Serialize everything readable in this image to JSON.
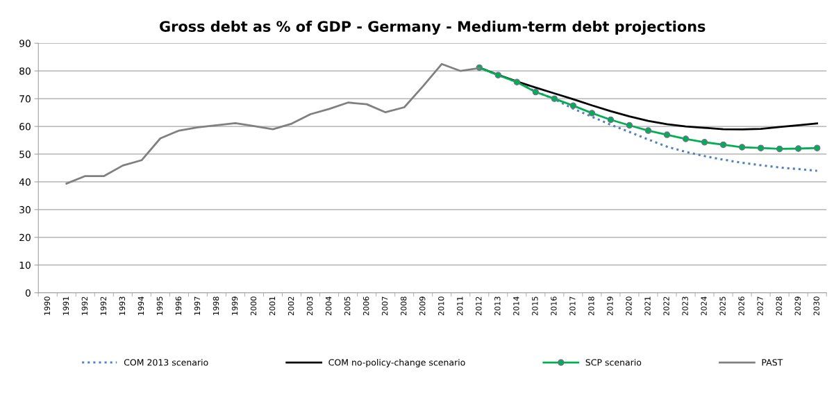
{
  "chart_data": {
    "type": "line",
    "title": "Gross debt as % of GDP - Germany - Medium-term debt projections",
    "categories": [
      "1990",
      "1991",
      "1992",
      "1992",
      "1993",
      "1994",
      "1995",
      "1996",
      "1997",
      "1998",
      "1999",
      "2000",
      "2001",
      "2002",
      "2003",
      "2004",
      "2005",
      "2006",
      "2007",
      "2008",
      "2009",
      "2010",
      "2011",
      "2012",
      "2013",
      "2014",
      "2015",
      "2016",
      "2017",
      "2018",
      "2019",
      "2020",
      "2021",
      "2022",
      "2023",
      "2024",
      "2025",
      "2026",
      "2027",
      "2028",
      "2029",
      "2030"
    ],
    "ylim": [
      0,
      90
    ],
    "yticks": [
      0,
      10,
      20,
      30,
      40,
      50,
      60,
      70,
      80,
      90
    ],
    "grid": "y",
    "legend": "bottom",
    "series": [
      {
        "name": "COM 2013 scenario",
        "color": "#4f81bd",
        "line_style": "dotted",
        "marker": "none",
        "values": [
          null,
          null,
          null,
          null,
          null,
          null,
          null,
          null,
          null,
          null,
          null,
          null,
          null,
          null,
          null,
          null,
          null,
          null,
          null,
          null,
          null,
          null,
          null,
          81.2,
          78.5,
          76.0,
          72.6,
          69.8,
          66.4,
          63.5,
          60.6,
          58.0,
          55.3,
          52.7,
          50.8,
          49.3,
          48.0,
          46.9,
          46.0,
          45.2,
          44.6,
          44.0
        ]
      },
      {
        "name": "COM no-policy-change scenario",
        "color": "#000000",
        "line_style": "solid",
        "marker": "none",
        "values": [
          null,
          null,
          null,
          null,
          null,
          null,
          null,
          null,
          null,
          null,
          null,
          null,
          null,
          null,
          null,
          null,
          null,
          null,
          null,
          null,
          null,
          null,
          null,
          81.2,
          78.6,
          76.2,
          74.0,
          71.9,
          69.8,
          67.6,
          65.5,
          63.6,
          62.0,
          60.8,
          60.0,
          59.5,
          59.0,
          58.9,
          59.1,
          59.8,
          60.4,
          61.1
        ]
      },
      {
        "name": "SCP scenario",
        "color": "#00b050",
        "line_style": "solid",
        "marker": "circle",
        "values": [
          null,
          null,
          null,
          null,
          null,
          null,
          null,
          null,
          null,
          null,
          null,
          null,
          null,
          null,
          null,
          null,
          null,
          null,
          null,
          null,
          null,
          null,
          null,
          81.2,
          78.5,
          76.0,
          72.4,
          70.0,
          67.5,
          64.8,
          62.4,
          60.4,
          58.5,
          57.0,
          55.5,
          54.3,
          53.4,
          52.5,
          52.2,
          51.9,
          52.0,
          52.2
        ]
      },
      {
        "name": "PAST",
        "color": "#808080",
        "line_style": "solid",
        "marker": "none",
        "values": [
          null,
          39.4,
          42.1,
          42.1,
          45.9,
          47.8,
          55.7,
          58.5,
          59.7,
          60.4,
          61.2,
          60.1,
          59.0,
          61.0,
          64.4,
          66.3,
          68.6,
          68.0,
          65.1,
          66.9,
          74.5,
          82.5,
          80.0,
          81.0,
          null,
          null,
          null,
          null,
          null,
          null,
          null,
          null,
          null,
          null,
          null,
          null,
          null,
          null,
          null,
          null,
          null,
          null
        ]
      }
    ]
  }
}
